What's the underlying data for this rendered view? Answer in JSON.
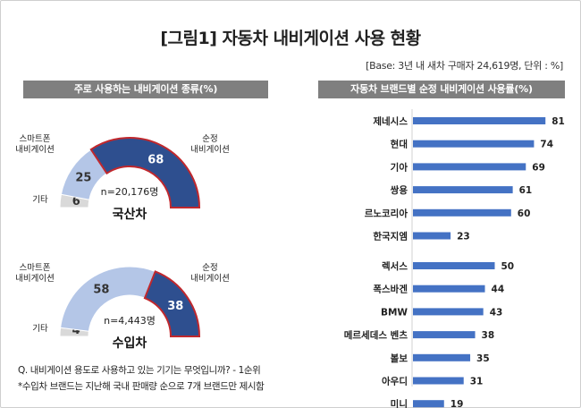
{
  "title": "[그림1] 자동차 내비게이션 사용 현황",
  "base_note": "[Base: 3년 내 새차 구매자 24,619명, 단위 : %]",
  "left_panel_title": "주로 사용하는 내비게이션 종류(%)",
  "right_panel_title": "자동차 브랜드별 순정 내비게이션 사용률(%)",
  "footnotes": [
    "Q. 내비게이션 용도로 사용하고 있는 기기는 무엇입니까? - 1순위",
    "*수입차 브랜드는 지난해 국내 판매량 순으로 7개 브랜드만 제시함"
  ],
  "colors": {
    "oem": "#2e4f8f",
    "oem_border": "#c0282d",
    "smartphone": "#b4c6e7",
    "other": "#d9d9d9",
    "bar": "#4472c4",
    "header": "#7f7f7f"
  },
  "chart_data": [
    {
      "type": "pie",
      "subtype": "semi-donut",
      "title": "국산차",
      "n_label": "n=20,176명",
      "slices": [
        {
          "label": "기타",
          "value": 6
        },
        {
          "label": "스마트폰\n내비게이션",
          "value": 25
        },
        {
          "label": "순정\n내비게이션",
          "value": 68
        }
      ]
    },
    {
      "type": "pie",
      "subtype": "semi-donut",
      "title": "수입차",
      "n_label": "n=4,443명",
      "slices": [
        {
          "label": "기타",
          "value": 4
        },
        {
          "label": "스마트폰\n내비게이션",
          "value": 58
        },
        {
          "label": "순정\n내비게이션",
          "value": 38
        }
      ]
    },
    {
      "type": "bar",
      "orientation": "horizontal",
      "groups": [
        {
          "categories": [
            "제네시스",
            "현대",
            "기아",
            "쌍용",
            "르노코리아",
            "한국지엠"
          ],
          "values": [
            81,
            74,
            69,
            61,
            60,
            23
          ]
        },
        {
          "categories": [
            "렉서스",
            "폭스바겐",
            "BMW",
            "메르세데스 벤츠",
            "볼보",
            "아우디",
            "미니"
          ],
          "values": [
            50,
            44,
            43,
            38,
            35,
            31,
            19
          ]
        }
      ]
    }
  ]
}
